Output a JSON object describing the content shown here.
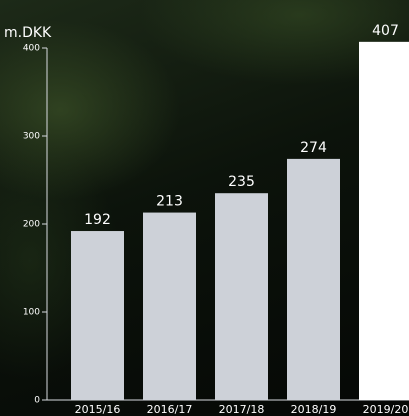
{
  "chart_data": {
    "type": "bar",
    "y_label": "m.DKK",
    "categories": [
      "2015/16",
      "2016/17",
      "2017/18",
      "2018/19",
      "2019/20"
    ],
    "values": [
      192,
      213,
      235,
      274,
      407
    ],
    "colors": [
      "#cdd1d8",
      "#cdd1d8",
      "#cdd1d8",
      "#cdd1d8",
      "#ffffff"
    ],
    "ylim": [
      0,
      400
    ],
    "yticks": [
      0,
      100,
      200,
      300,
      400
    ]
  }
}
